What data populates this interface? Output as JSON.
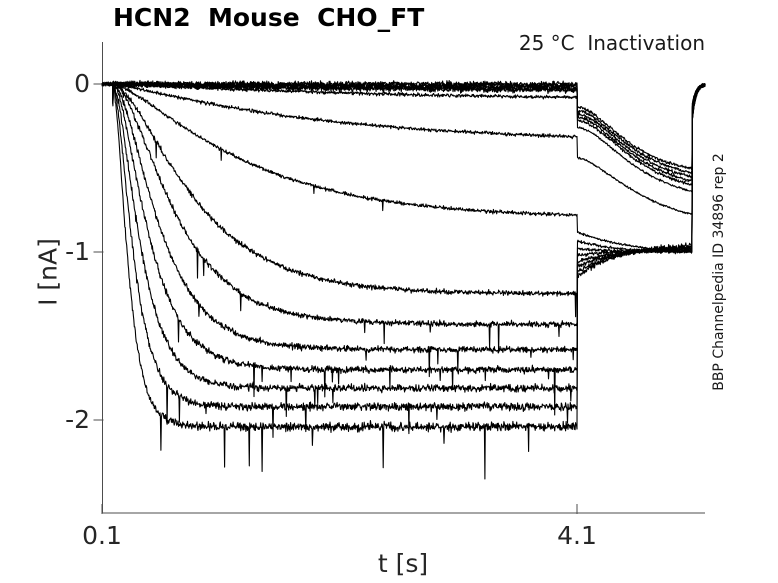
{
  "figure": {
    "title": "HCN2  Mouse  CHO_FT",
    "annotation": "25 °C  Inactivation",
    "watermark": "BBP Channelpedia ID 34896 rep 2"
  },
  "chart_data": {
    "type": "line",
    "title": "HCN2  Mouse  CHO_FT",
    "subtitle": "25 °C  Inactivation",
    "watermark": "BBP Channelpedia ID 34896 rep 2",
    "xlabel": "t [s]",
    "ylabel": "I [nA]",
    "x_tick_values": [
      0.1,
      4.1
    ],
    "x_tick_labels": [
      "0.1",
      "4.1"
    ],
    "y_tick_values": [
      0,
      -1,
      -2
    ],
    "y_tick_labels": [
      "0",
      "-1",
      "-2"
    ],
    "xlim": [
      0.1,
      5.18
    ],
    "ylim": [
      -2.55,
      0.25
    ],
    "grid": false,
    "legend": null,
    "line_color": "#000000",
    "axis_color": "#4d4d4d",
    "label_color": "#262626",
    "protocol": {
      "baseline_start_s": 0.1,
      "step_on_s": 0.19,
      "step_off_s": 4.1,
      "end_step_s": 5.07,
      "trace_end_s": 5.18
    },
    "sweeps": [
      {
        "steady_state_nA": 0.0,
        "tau_act_s": 1.5,
        "act_sigmoid": 1.2,
        "noise_nA": 0.02,
        "tail_start_nA": -0.14,
        "tail_end_nA": -0.55,
        "tail_tau_s": 0.33,
        "tail_sigmoid": 2.2,
        "spike_prob": 0.0,
        "spike_amp_nA": 0.0
      },
      {
        "steady_state_nA": -0.01,
        "tau_act_s": 1.5,
        "act_sigmoid": 1.2,
        "noise_nA": 0.02,
        "tail_start_nA": -0.16,
        "tail_end_nA": -0.58,
        "tail_tau_s": 0.34,
        "tail_sigmoid": 2.2,
        "spike_prob": 0.0,
        "spike_amp_nA": 0.0
      },
      {
        "steady_state_nA": -0.02,
        "tau_act_s": 1.5,
        "act_sigmoid": 1.2,
        "noise_nA": 0.02,
        "tail_start_nA": -0.18,
        "tail_end_nA": -0.61,
        "tail_tau_s": 0.35,
        "tail_sigmoid": 2.2,
        "spike_prob": 0.0,
        "spike_amp_nA": 0.0
      },
      {
        "steady_state_nA": -0.03,
        "tau_act_s": 1.5,
        "act_sigmoid": 1.2,
        "noise_nA": 0.02,
        "tail_start_nA": -0.2,
        "tail_end_nA": -0.64,
        "tail_tau_s": 0.36,
        "tail_sigmoid": 2.2,
        "spike_prob": 0.0,
        "spike_amp_nA": 0.0
      },
      {
        "steady_state_nA": -0.04,
        "tau_act_s": 1.5,
        "act_sigmoid": 1.2,
        "noise_nA": 0.02,
        "tail_start_nA": -0.22,
        "tail_end_nA": -0.67,
        "tail_tau_s": 0.37,
        "tail_sigmoid": 2.2,
        "spike_prob": 0.0,
        "spike_amp_nA": 0.0
      },
      {
        "steady_state_nA": -0.1,
        "tau_act_s": 2.2,
        "act_sigmoid": 1.2,
        "noise_nA": 0.012,
        "tail_start_nA": -0.26,
        "tail_end_nA": -0.71,
        "tail_tau_s": 0.38,
        "tail_sigmoid": 2.1,
        "spike_prob": 0.0,
        "spike_amp_nA": 0.0
      },
      {
        "steady_state_nA": -0.35,
        "tau_act_s": 1.6,
        "act_sigmoid": 1.2,
        "noise_nA": 0.012,
        "tail_start_nA": -0.44,
        "tail_end_nA": -0.86,
        "tail_tau_s": 0.45,
        "tail_sigmoid": 1.8,
        "spike_prob": 0.0,
        "spike_amp_nA": 0.0
      },
      {
        "steady_state_nA": -0.8,
        "tau_act_s": 0.95,
        "act_sigmoid": 1.5,
        "noise_nA": 0.013,
        "tail_start_nA": -0.88,
        "tail_end_nA": -1.02,
        "tail_tau_s": 0.5,
        "tail_sigmoid": 1.0,
        "spike_prob": 0.004,
        "spike_amp_nA": 0.1
      },
      {
        "steady_state_nA": -1.25,
        "tau_act_s": 0.55,
        "act_sigmoid": 1.8,
        "noise_nA": 0.018,
        "tail_start_nA": -0.93,
        "tail_end_nA": -1.0,
        "tail_tau_s": 0.3,
        "tail_sigmoid": 1.0,
        "spike_prob": 0.008,
        "spike_amp_nA": 0.18
      },
      {
        "steady_state_nA": -1.43,
        "tau_act_s": 0.4,
        "act_sigmoid": 2.0,
        "noise_nA": 0.02,
        "tail_start_nA": -0.98,
        "tail_end_nA": -1.0,
        "tail_tau_s": 0.3,
        "tail_sigmoid": 1.0,
        "spike_prob": 0.008,
        "spike_amp_nA": 0.2
      },
      {
        "steady_state_nA": -1.58,
        "tau_act_s": 0.3,
        "act_sigmoid": 2.0,
        "noise_nA": 0.022,
        "tail_start_nA": -1.02,
        "tail_end_nA": -0.99,
        "tail_tau_s": 0.32,
        "tail_sigmoid": 1.0,
        "spike_prob": 0.009,
        "spike_amp_nA": 0.22
      },
      {
        "steady_state_nA": -1.7,
        "tau_act_s": 0.235,
        "act_sigmoid": 2.0,
        "noise_nA": 0.024,
        "tail_start_nA": -1.06,
        "tail_end_nA": -0.98,
        "tail_tau_s": 0.33,
        "tail_sigmoid": 1.0,
        "spike_prob": 0.01,
        "spike_amp_nA": 0.24
      },
      {
        "steady_state_nA": -1.81,
        "tau_act_s": 0.18,
        "act_sigmoid": 2.0,
        "noise_nA": 0.026,
        "tail_start_nA": -1.09,
        "tail_end_nA": -0.97,
        "tail_tau_s": 0.34,
        "tail_sigmoid": 1.0,
        "spike_prob": 0.011,
        "spike_amp_nA": 0.26
      },
      {
        "steady_state_nA": -1.92,
        "tau_act_s": 0.135,
        "act_sigmoid": 2.0,
        "noise_nA": 0.028,
        "tail_start_nA": -1.12,
        "tail_end_nA": -0.96,
        "tail_tau_s": 0.35,
        "tail_sigmoid": 1.0,
        "spike_prob": 0.012,
        "spike_amp_nA": 0.3
      },
      {
        "steady_state_nA": -2.04,
        "tau_act_s": 0.1,
        "act_sigmoid": 2.0,
        "noise_nA": 0.032,
        "tail_start_nA": -1.15,
        "tail_end_nA": -0.95,
        "tail_tau_s": 0.35,
        "tail_sigmoid": 1.0,
        "spike_prob": 0.013,
        "spike_amp_nA": 0.35
      }
    ]
  }
}
